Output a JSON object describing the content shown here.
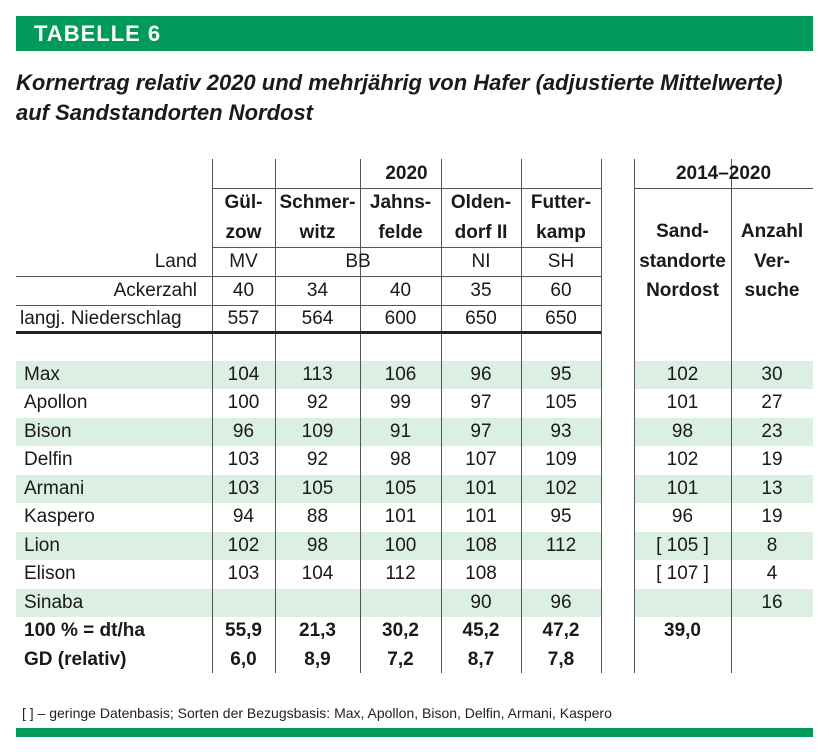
{
  "table_label": "TABELLE 6",
  "title": "Kornertrag relativ 2020 und mehrjährig von Hafer (adjustierte Mittelwerte) auf Sandstandorten Nordost",
  "header": {
    "year_group": "2020",
    "multi_year_group": "2014–2020",
    "sites": [
      {
        "l1": "Gül-",
        "l2": "zow"
      },
      {
        "l1": "Schmer-",
        "l2": "witz"
      },
      {
        "l1": "Jahns-",
        "l2": "felde"
      },
      {
        "l1": "Olden-",
        "l2": "dorf II"
      },
      {
        "l1": "Futter-",
        "l2": "kamp"
      }
    ],
    "sand_col": {
      "l1": "Sand-",
      "l2": "standorte",
      "l3": "Nordost"
    },
    "count_col": {
      "l1": "Anzahl",
      "l2": "Ver-",
      "l3": "suche"
    },
    "land_label": "Land",
    "lands": {
      "mv": "MV",
      "bb": "BB",
      "ni": "NI",
      "sh": "SH"
    },
    "ackerzahl_label": "Ackerzahl",
    "ackerzahl": [
      "40",
      "34",
      "40",
      "35",
      "60"
    ],
    "niederschlag_label": "langj. Niederschlag",
    "niederschlag": [
      "557",
      "564",
      "600",
      "650",
      "650"
    ]
  },
  "rows": [
    {
      "name": "Max",
      "values": [
        "104",
        "113",
        "106",
        "96",
        "95"
      ],
      "sand": "102",
      "count": "30"
    },
    {
      "name": "Apollon",
      "values": [
        "100",
        "92",
        "99",
        "97",
        "105"
      ],
      "sand": "101",
      "count": "27"
    },
    {
      "name": "Bison",
      "values": [
        "96",
        "109",
        "91",
        "97",
        "93"
      ],
      "sand": "98",
      "count": "23"
    },
    {
      "name": "Delfin",
      "values": [
        "103",
        "92",
        "98",
        "107",
        "109"
      ],
      "sand": "102",
      "count": "19"
    },
    {
      "name": "Armani",
      "values": [
        "103",
        "105",
        "105",
        "101",
        "102"
      ],
      "sand": "101",
      "count": "13"
    },
    {
      "name": "Kaspero",
      "values": [
        "94",
        "88",
        "101",
        "101",
        "95"
      ],
      "sand": "96",
      "count": "19"
    },
    {
      "name": "Lion",
      "values": [
        "102",
        "98",
        "100",
        "108",
        "112"
      ],
      "sand": "[ 105 ]",
      "count": "8"
    },
    {
      "name": "Elison",
      "values": [
        "103",
        "104",
        "112",
        "108",
        ""
      ],
      "sand": "[ 107 ]",
      "count": "4"
    },
    {
      "name": "Sinaba",
      "values": [
        "",
        "",
        "",
        "90",
        "96"
      ],
      "sand": "",
      "count": "16"
    }
  ],
  "summary": [
    {
      "name": "100 % = dt/ha",
      "values": [
        "55,9",
        "21,3",
        "30,2",
        "45,2",
        "47,2"
      ],
      "sand": "39,0",
      "count": ""
    },
    {
      "name": "GD (relativ)",
      "values": [
        "6,0",
        "8,9",
        "7,2",
        "8,7",
        "7,8"
      ],
      "sand": "",
      "count": ""
    }
  ],
  "footnote": "[ ] – geringe Datenbasis; Sorten der Bezugsbasis: Max, Apollon, Bison, Delfin, Armani, Kaspero"
}
